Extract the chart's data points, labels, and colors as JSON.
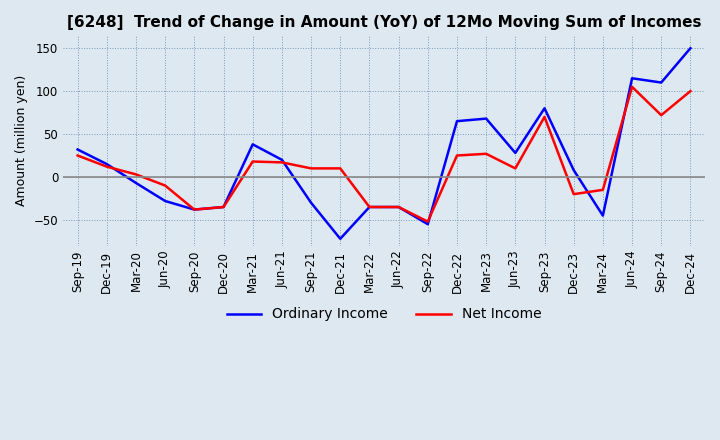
{
  "title": "[6248]  Trend of Change in Amount (YoY) of 12Mo Moving Sum of Incomes",
  "ylabel": "Amount (million yen)",
  "ylim": [
    -80,
    165
  ],
  "yticks": [
    -50,
    0,
    50,
    100,
    150
  ],
  "x_labels": [
    "Sep-19",
    "Dec-19",
    "Mar-20",
    "Jun-20",
    "Sep-20",
    "Dec-20",
    "Mar-21",
    "Jun-21",
    "Sep-21",
    "Dec-21",
    "Mar-22",
    "Jun-22",
    "Sep-22",
    "Dec-22",
    "Mar-23",
    "Jun-23",
    "Sep-23",
    "Dec-23",
    "Mar-24",
    "Jun-24",
    "Sep-24",
    "Dec-24"
  ],
  "ordinary_income": [
    32,
    15,
    -7,
    -28,
    -38,
    -35,
    38,
    20,
    -30,
    -72,
    -35,
    -35,
    -55,
    65,
    68,
    28,
    80,
    8,
    -45,
    115,
    110,
    150
  ],
  "net_income": [
    25,
    12,
    3,
    -10,
    -38,
    -35,
    18,
    17,
    10,
    10,
    -35,
    -35,
    -52,
    25,
    27,
    10,
    70,
    -20,
    -15,
    105,
    72,
    100
  ],
  "ordinary_color": "#0000ff",
  "net_color": "#ff0000",
  "background_color": "#dde8f0",
  "plot_bg_color": "#dde8f0",
  "grid_color": "#7799bb",
  "zero_line_color": "#888888",
  "title_fontsize": 11,
  "axis_fontsize": 9,
  "tick_fontsize": 8.5,
  "legend_fontsize": 10
}
